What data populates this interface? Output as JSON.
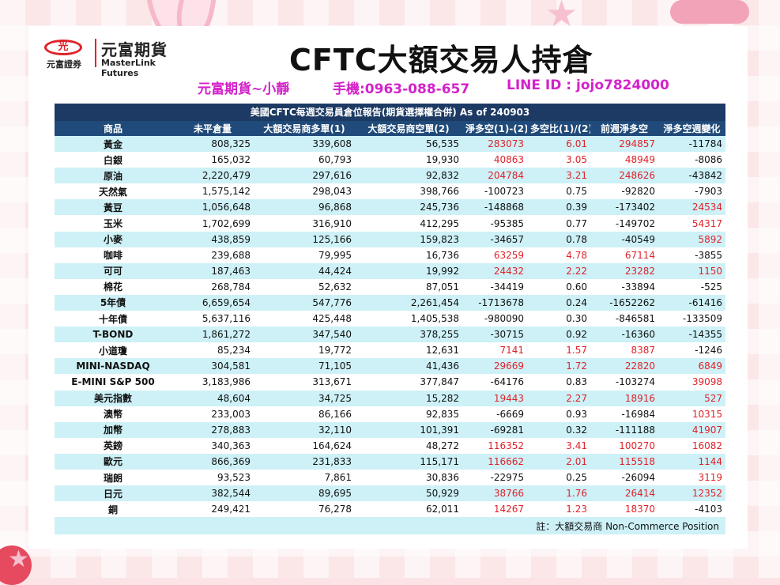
{
  "logo": {
    "badge_text": "光",
    "small_cn": "元富證券",
    "cn": "元富期貨",
    "en": "MasterLink Futures"
  },
  "title": "CFTC大額交易人持倉",
  "contact": {
    "name": "元富期貨~小靜",
    "phone": "手機:0963-088-657",
    "line": "LINE ID : jojo7824000"
  },
  "table": {
    "title": "美國CFTC每週交易員倉位報告(期貨選擇權合併) As of  240903",
    "headers": [
      "商品",
      "未平倉量",
      "大額交易商多單(1)",
      "大額交易商空單(2)",
      "淨多空(1)-(2)",
      "多空比(1)/(2)",
      "前週淨多空",
      "淨多空週變化"
    ],
    "rows": [
      {
        "name": "黃金",
        "oi": "808,325",
        "long": "339,608",
        "short": "56,535",
        "net": "283073",
        "ratio": "6.01",
        "prev": "294857",
        "chg": "-11784"
      },
      {
        "name": "白銀",
        "oi": "165,032",
        "long": "60,793",
        "short": "19,930",
        "net": "40863",
        "ratio": "3.05",
        "prev": "48949",
        "chg": "-8086"
      },
      {
        "name": "原油",
        "oi": "2,220,479",
        "long": "297,616",
        "short": "92,832",
        "net": "204784",
        "ratio": "3.21",
        "prev": "248626",
        "chg": "-43842"
      },
      {
        "name": "天然氣",
        "oi": "1,575,142",
        "long": "298,043",
        "short": "398,766",
        "net": "-100723",
        "ratio": "0.75",
        "prev": "-92820",
        "chg": "-7903"
      },
      {
        "name": "黃豆",
        "oi": "1,056,648",
        "long": "96,868",
        "short": "245,736",
        "net": "-148868",
        "ratio": "0.39",
        "prev": "-173402",
        "chg": "24534"
      },
      {
        "name": "玉米",
        "oi": "1,702,699",
        "long": "316,910",
        "short": "412,295",
        "net": "-95385",
        "ratio": "0.77",
        "prev": "-149702",
        "chg": "54317"
      },
      {
        "name": "小麥",
        "oi": "438,859",
        "long": "125,166",
        "short": "159,823",
        "net": "-34657",
        "ratio": "0.78",
        "prev": "-40549",
        "chg": "5892"
      },
      {
        "name": "咖啡",
        "oi": "239,688",
        "long": "79,995",
        "short": "16,736",
        "net": "63259",
        "ratio": "4.78",
        "prev": "67114",
        "chg": "-3855"
      },
      {
        "name": "可可",
        "oi": "187,463",
        "long": "44,424",
        "short": "19,992",
        "net": "24432",
        "ratio": "2.22",
        "prev": "23282",
        "chg": "1150"
      },
      {
        "name": "棉花",
        "oi": "268,784",
        "long": "52,632",
        "short": "87,051",
        "net": "-34419",
        "ratio": "0.60",
        "prev": "-33894",
        "chg": "-525"
      },
      {
        "name": "5年債",
        "oi": "6,659,654",
        "long": "547,776",
        "short": "2,261,454",
        "net": "-1713678",
        "ratio": "0.24",
        "prev": "-1652262",
        "chg": "-61416"
      },
      {
        "name": "十年債",
        "oi": "5,637,116",
        "long": "425,448",
        "short": "1,405,538",
        "net": "-980090",
        "ratio": "0.30",
        "prev": "-846581",
        "chg": "-133509"
      },
      {
        "name": "T-BOND",
        "oi": "1,861,272",
        "long": "347,540",
        "short": "378,255",
        "net": "-30715",
        "ratio": "0.92",
        "prev": "-16360",
        "chg": "-14355"
      },
      {
        "name": "小道瓊",
        "oi": "85,234",
        "long": "19,772",
        "short": "12,631",
        "net": "7141",
        "ratio": "1.57",
        "prev": "8387",
        "chg": "-1246"
      },
      {
        "name": "MINI-NASDAQ",
        "oi": "304,581",
        "long": "71,105",
        "short": "41,436",
        "net": "29669",
        "ratio": "1.72",
        "prev": "22820",
        "chg": "6849"
      },
      {
        "name": "E-MINI S&P 500",
        "oi": "3,183,986",
        "long": "313,671",
        "short": "377,847",
        "net": "-64176",
        "ratio": "0.83",
        "prev": "-103274",
        "chg": "39098"
      },
      {
        "name": "美元指數",
        "oi": "48,604",
        "long": "34,725",
        "short": "15,282",
        "net": "19443",
        "ratio": "2.27",
        "prev": "18916",
        "chg": "527"
      },
      {
        "name": "澳幣",
        "oi": "233,003",
        "long": "86,166",
        "short": "92,835",
        "net": "-6669",
        "ratio": "0.93",
        "prev": "-16984",
        "chg": "10315"
      },
      {
        "name": "加幣",
        "oi": "278,883",
        "long": "32,110",
        "short": "101,391",
        "net": "-69281",
        "ratio": "0.32",
        "prev": "-111188",
        "chg": "41907"
      },
      {
        "name": "英鎊",
        "oi": "340,363",
        "long": "164,624",
        "short": "48,272",
        "net": "116352",
        "ratio": "3.41",
        "prev": "100270",
        "chg": "16082"
      },
      {
        "name": "歐元",
        "oi": "866,369",
        "long": "231,833",
        "short": "115,171",
        "net": "116662",
        "ratio": "2.01",
        "prev": "115518",
        "chg": "1144"
      },
      {
        "name": "瑞朗",
        "oi": "93,523",
        "long": "7,861",
        "short": "30,836",
        "net": "-22975",
        "ratio": "0.25",
        "prev": "-26094",
        "chg": "3119"
      },
      {
        "name": "日元",
        "oi": "382,544",
        "long": "89,695",
        "short": "50,929",
        "net": "38766",
        "ratio": "1.76",
        "prev": "26414",
        "chg": "12352"
      },
      {
        "name": "銅",
        "oi": "249,421",
        "long": "76,278",
        "short": "62,011",
        "net": "14267",
        "ratio": "1.23",
        "prev": "18370",
        "chg": "-4103"
      }
    ],
    "note": "註：大額交易商 Non-Commerce Position"
  },
  "colors": {
    "header_bg": "#1f4a79",
    "title_bg": "#1c3a63",
    "stripe": "#cdf1f7",
    "positive": "#e0222a",
    "contact": "#d322c9"
  }
}
